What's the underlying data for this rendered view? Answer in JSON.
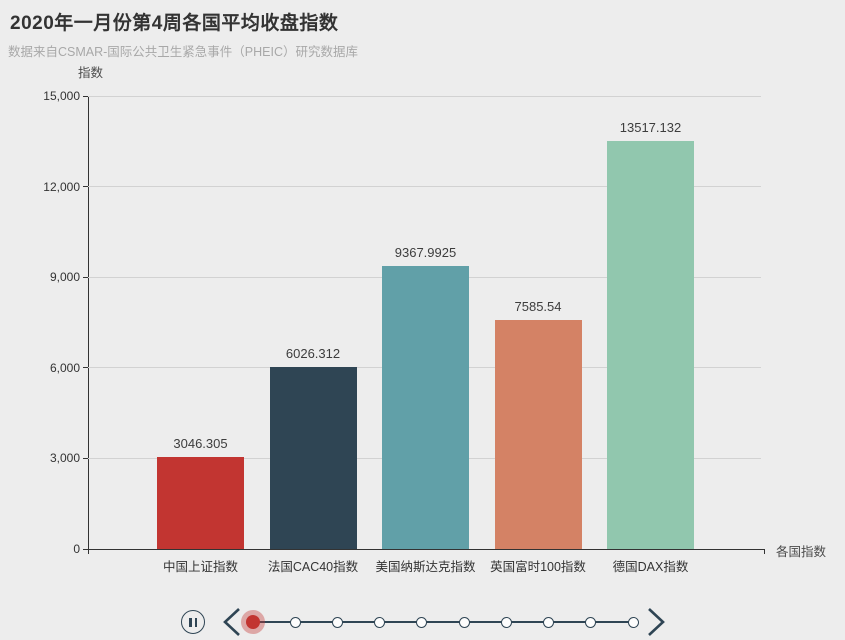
{
  "title": "2020年一月份第4周各国平均收盘指数",
  "subtitle": "数据来自CSMAR-国际公共卫生紧急事件（PHEIC）研究数据库",
  "chart_data": {
    "type": "bar",
    "title": "2020年一月份第4周各国平均收盘指数",
    "subtitle": "数据来自CSMAR-国际公共卫生紧急事件（PHEIC）研究数据库",
    "categories": [
      "中国上证指数",
      "法国CAC40指数",
      "美国纳斯达克指数",
      "英国富时100指数",
      "德国DAX指数"
    ],
    "values": [
      3046.305,
      6026.312,
      9367.9925,
      7585.54,
      13517.132
    ],
    "value_labels": [
      "3046.305",
      "6026.312",
      "9367.9925",
      "7585.54",
      "13517.132"
    ],
    "bar_colors": [
      "#c23531",
      "#2f4554",
      "#61a0a8",
      "#d48265",
      "#91c7ae"
    ],
    "xlabel": "各国指数",
    "ylabel": "指数",
    "ylim": [
      0,
      15000
    ],
    "ytick_interval": 3000,
    "ytick_labels": [
      "0",
      "3,000",
      "6,000",
      "9,000",
      "12,000",
      "15,000"
    ],
    "grid": true,
    "legend": "none"
  },
  "timeline": {
    "num_steps": 10,
    "current_step_index": 0,
    "state": "playing",
    "accent_color": "#c23531",
    "control_color": "#2f4554"
  },
  "colors": {
    "background": "#ededed",
    "grid_line": "#d2d2d2",
    "axis_line": "#333333",
    "title_text": "#333333",
    "subtitle_text": "#a8a8a8"
  }
}
